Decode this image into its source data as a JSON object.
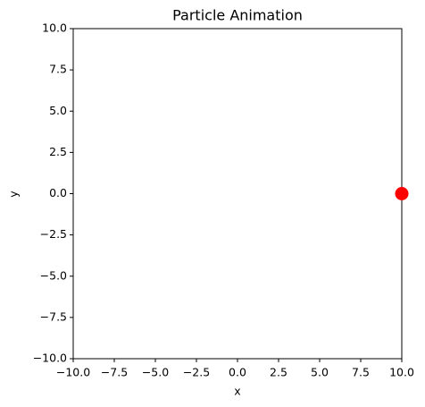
{
  "chart_data": {
    "type": "scatter",
    "title": "Particle Animation",
    "x_label": "x",
    "y_label": "y",
    "x": [
      10
    ],
    "values": [
      0
    ],
    "color": "#ff0000",
    "xlim": [
      -10,
      10
    ],
    "ylim": [
      -10,
      10
    ],
    "xticks": [
      {
        "value": -10,
        "label": "−10.0"
      },
      {
        "value": -7.5,
        "label": "−7.5"
      },
      {
        "value": -5,
        "label": "−5.0"
      },
      {
        "value": -2.5,
        "label": "−2.5"
      },
      {
        "value": 0,
        "label": "0.0"
      },
      {
        "value": 2.5,
        "label": "2.5"
      },
      {
        "value": 5,
        "label": "5.0"
      },
      {
        "value": 7.5,
        "label": "7.5"
      },
      {
        "value": 10,
        "label": "10.0"
      }
    ],
    "yticks": [
      {
        "value": -10,
        "label": "−10.0"
      },
      {
        "value": -7.5,
        "label": "−7.5"
      },
      {
        "value": -5,
        "label": "−5.0"
      },
      {
        "value": -2.5,
        "label": "−2.5"
      },
      {
        "value": 0,
        "label": "0.0"
      },
      {
        "value": 2.5,
        "label": "2.5"
      },
      {
        "value": 5,
        "label": "5.0"
      },
      {
        "value": 7.5,
        "label": "7.5"
      },
      {
        "value": 10,
        "label": "10.0"
      }
    ]
  }
}
